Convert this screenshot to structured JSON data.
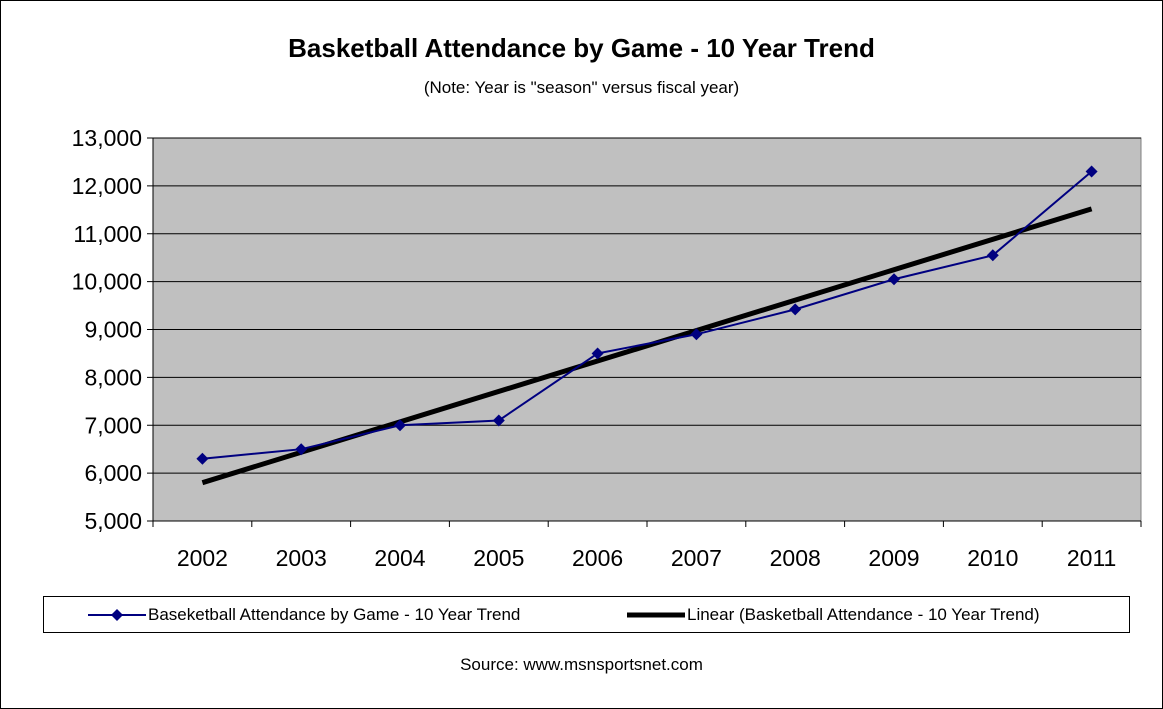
{
  "chart_data": {
    "type": "line",
    "title": "Basketball Attendance by Game - 10 Year Trend",
    "subtitle": "(Note: Year is \"season\" versus fiscal year)",
    "categories": [
      "2002",
      "2003",
      "2004",
      "2005",
      "2006",
      "2007",
      "2008",
      "2009",
      "2010",
      "2011"
    ],
    "ylim": [
      5000,
      13000
    ],
    "yticks": [
      5000,
      6000,
      7000,
      8000,
      9000,
      10000,
      11000,
      12000,
      13000
    ],
    "ytick_labels": [
      "5,000",
      "6,000",
      "7,000",
      "8,000",
      "9,000",
      "10,000",
      "11,000",
      "12,000",
      "13,000"
    ],
    "grid": true,
    "legend_position": "bottom",
    "series": [
      {
        "name": "Baseketball Attendance by Game - 10 Year Trend",
        "values": [
          6300,
          6500,
          7000,
          7100,
          8500,
          8900,
          9420,
          10050,
          10550,
          12300
        ],
        "color": "#000080",
        "marker": "diamond"
      },
      {
        "name": "Linear (Basketball Attendance - 10 Year Trend)",
        "type": "trendline",
        "start": 5800,
        "end": 11520,
        "color": "#000000"
      }
    ],
    "plot_background": "#c0c0c0",
    "source": "Source: www.msnsportsnet.com"
  }
}
